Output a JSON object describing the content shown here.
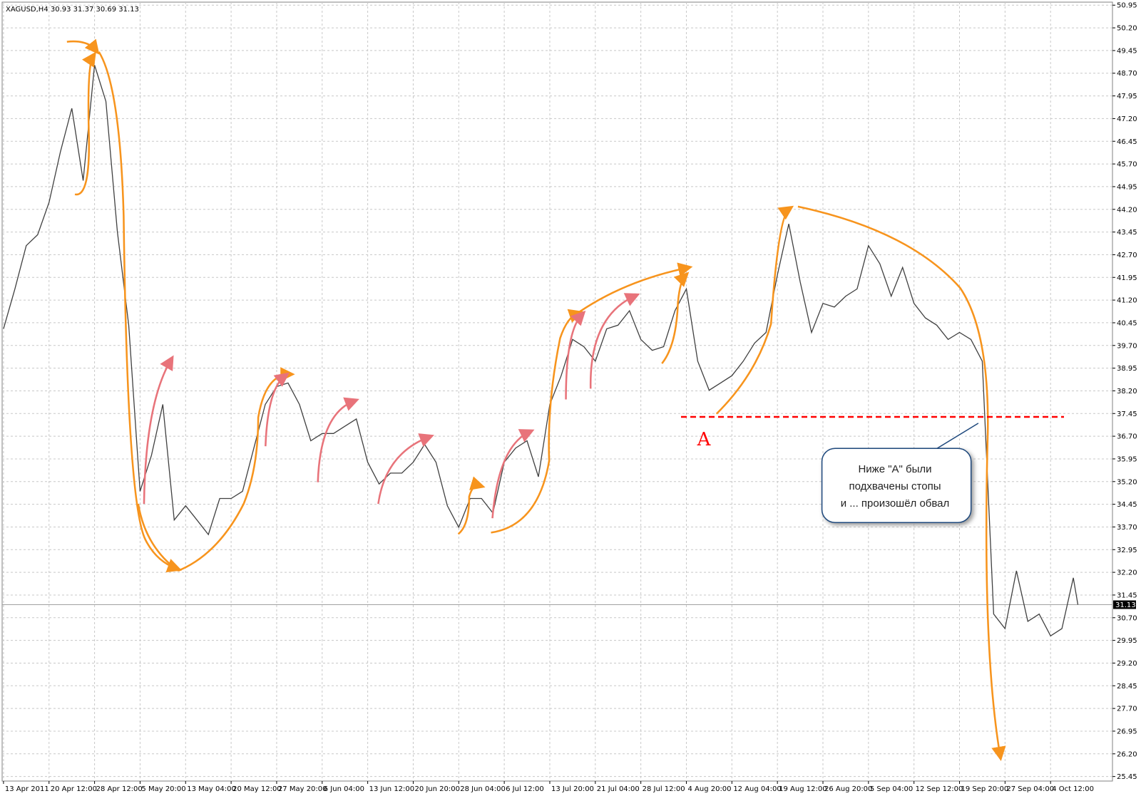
{
  "chart_data": {
    "type": "line",
    "title": "XAGUSD,H4  30.93 31.37 30.69 31.13",
    "x": [
      0,
      0.25,
      0.5,
      0.75,
      1,
      1.25,
      1.5,
      1.75,
      2,
      2.25,
      2.5,
      2.75,
      3,
      3.25,
      3.5,
      3.75,
      4,
      4.25,
      4.5,
      4.75,
      5,
      5.25,
      5.5,
      5.75,
      6,
      6.25,
      6.5,
      6.75,
      7,
      7.25,
      7.5,
      7.75,
      8,
      8.25,
      8.5,
      8.75,
      9,
      9.25,
      9.5,
      9.75,
      10,
      10.25,
      10.5,
      10.75,
      11,
      11.25,
      11.5,
      11.75,
      12,
      12.25,
      12.5,
      12.75,
      13,
      13.25,
      13.5,
      13.75,
      14,
      14.25,
      14.5,
      14.75,
      15,
      15.25,
      15.5,
      15.75,
      16,
      16.25,
      16.5,
      16.75,
      17,
      17.25,
      17.5,
      17.75,
      18,
      18.25,
      18.5,
      18.75,
      19,
      19.25,
      19.5,
      19.75,
      20,
      20.25,
      20.5,
      20.75,
      21,
      21.25,
      21.5,
      21.75,
      22,
      22.25,
      22.5,
      22.75,
      23,
      23.25,
      23.5,
      23.6
    ],
    "series": [
      {
        "name": "XAGUSD,H4",
        "color": "#404040",
        "values": [
          40.25,
          41.57,
          43.0,
          43.36,
          44.43,
          46.1,
          47.54,
          45.15,
          48.97,
          47.77,
          43.48,
          40.37,
          34.88,
          36.07,
          37.75,
          33.93,
          34.4,
          33.93,
          33.45,
          34.64,
          34.64,
          34.88,
          36.31,
          37.75,
          38.34,
          38.46,
          37.75,
          36.55,
          36.79,
          36.79,
          37.03,
          37.27,
          35.84,
          35.12,
          35.48,
          35.48,
          35.84,
          36.43,
          35.84,
          34.4,
          33.69,
          34.64,
          34.64,
          34.16,
          35.84,
          36.31,
          36.55,
          35.36,
          37.75,
          38.7,
          39.9,
          39.66,
          39.18,
          40.25,
          40.37,
          40.85,
          39.9,
          39.54,
          39.66,
          40.85,
          41.57,
          39.18,
          38.22,
          38.46,
          38.7,
          39.18,
          39.78,
          40.13,
          42.04,
          43.72,
          41.8,
          40.13,
          41.09,
          40.97,
          41.33,
          41.57,
          43.0,
          42.4,
          41.33,
          42.28,
          41.09,
          40.61,
          40.37,
          39.9,
          40.13,
          39.9,
          39.18,
          30.82,
          30.34,
          32.25,
          30.58,
          30.82,
          30.1,
          30.34,
          32.02,
          31.13
        ]
      }
    ],
    "xlim": [
      -0.03,
      24.36
    ],
    "xticks": [
      {
        "value": 0,
        "label": "13 Apr 2011"
      },
      {
        "value": 1,
        "label": "20 Apr 12:00"
      },
      {
        "value": 2,
        "label": "28 Apr 12:00"
      },
      {
        "value": 3,
        "label": "5 May 20:00"
      },
      {
        "value": 4,
        "label": "13 May 04:00"
      },
      {
        "value": 5,
        "label": "20 May 12:00"
      },
      {
        "value": 6,
        "label": "27 May 20:00"
      },
      {
        "value": 7,
        "label": "6 Jun 04:00"
      },
      {
        "value": 8,
        "label": "13 Jun 12:00"
      },
      {
        "value": 9,
        "label": "20 Jun 20:00"
      },
      {
        "value": 10,
        "label": "28 Jun 04:00"
      },
      {
        "value": 11,
        "label": "6 Jul 12:00"
      },
      {
        "value": 12,
        "label": "13 Jul 20:00"
      },
      {
        "value": 13,
        "label": "21 Jul 04:00"
      },
      {
        "value": 14,
        "label": "28 Jul 12:00"
      },
      {
        "value": 15,
        "label": "4 Aug 20:00"
      },
      {
        "value": 16,
        "label": "12 Aug 04:00"
      },
      {
        "value": 17,
        "label": "19 Aug 12:00"
      },
      {
        "value": 18,
        "label": "26 Aug 20:00"
      },
      {
        "value": 19,
        "label": "5 Sep 04:00"
      },
      {
        "value": 20,
        "label": "12 Sep 12:00"
      },
      {
        "value": 21,
        "label": "19 Sep 20:00"
      },
      {
        "value": 22,
        "label": "27 Sep 04:00"
      },
      {
        "value": 23,
        "label": "4 Oct 12:00"
      }
    ],
    "ylim": [
      25.3,
      51.05
    ],
    "yticks": [
      25.45,
      {
        "value": 26.2,
        "label": "26.20"
      },
      26.95,
      {
        "value": 27.7,
        "label": "27.70"
      },
      28.45,
      {
        "value": 29.2,
        "label": "29.20"
      },
      29.95,
      {
        "value": 30.7,
        "label": "30.70"
      },
      31.45,
      {
        "value": 32.2,
        "label": "32.20"
      },
      32.95,
      {
        "value": 33.7,
        "label": "33.70"
      },
      34.45,
      {
        "value": 35.2,
        "label": "35.20"
      },
      35.95,
      {
        "value": 36.7,
        "label": "36.70"
      },
      37.45,
      {
        "value": 38.2,
        "label": "38.20"
      },
      38.95,
      {
        "value": 39.7,
        "label": "39.70"
      },
      40.45,
      {
        "value": 41.2,
        "label": "41.20"
      },
      41.95,
      {
        "value": 42.7,
        "label": "42.70"
      },
      43.45,
      {
        "value": 44.2,
        "label": "44.20"
      },
      44.95,
      {
        "value": 45.7,
        "label": "45.70"
      },
      46.45,
      {
        "value": 47.2,
        "label": "47.20"
      },
      47.95,
      {
        "value": 48.7,
        "label": "48.70"
      },
      49.45,
      {
        "value": 50.2,
        "label": "50.20"
      },
      50.95
    ],
    "grid": true,
    "last_price": 31.13,
    "reference_line": {
      "label": "A",
      "value": 37.34,
      "color": "#ff0000"
    },
    "callout": [
      "Ниже \"A\" были",
      "подхвачены стопы",
      "и ... произошёл обвал"
    ]
  }
}
